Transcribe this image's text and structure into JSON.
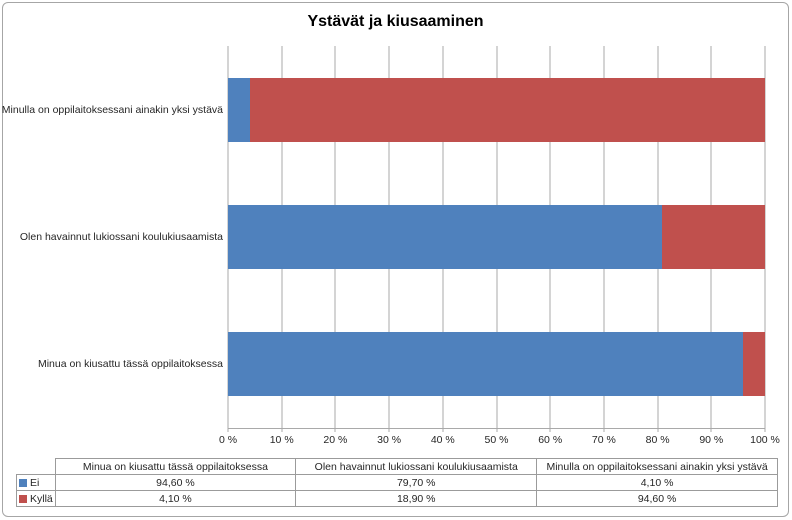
{
  "chart_data": {
    "type": "bar",
    "orientation": "horizontal",
    "stacked": true,
    "stacked_100_percent": true,
    "title": "Ystävät ja kiusaaminen",
    "categories": [
      "Minua on kiusattu tässä oppilaitoksessa",
      "Olen havainnut lukiossani koulukiusaamista",
      "Minulla on oppilaitoksessani ainakin yksi ystävä"
    ],
    "plot_category_order_top_to_bottom": [
      "Minulla on oppilaitoksessani ainakin yksi ystävä",
      "Olen havainnut lukiossani koulukiusaamista",
      "Minua on kiusattu tässä oppilaitoksessa"
    ],
    "series": [
      {
        "name": "Ei",
        "color": "#4f81bd",
        "values": [
          94.6,
          79.7,
          4.1
        ],
        "value_labels": [
          "94,60 %",
          "79,70 %",
          "4,10 %"
        ]
      },
      {
        "name": "Kyllä",
        "color": "#c0504d",
        "values": [
          4.1,
          18.9,
          94.6
        ],
        "value_labels": [
          "4,10 %",
          "18,90 %",
          "94,60 %"
        ]
      }
    ],
    "x_axis": {
      "min": 0,
      "max": 100,
      "ticks": [
        "0 %",
        "10 %",
        "20 %",
        "30 %",
        "40 %",
        "50 %",
        "60 %",
        "70 %",
        "80 %",
        "90 %",
        "100 %"
      ]
    },
    "grid": true,
    "legend_position": "data-table-left-column",
    "data_table_shown": true
  }
}
